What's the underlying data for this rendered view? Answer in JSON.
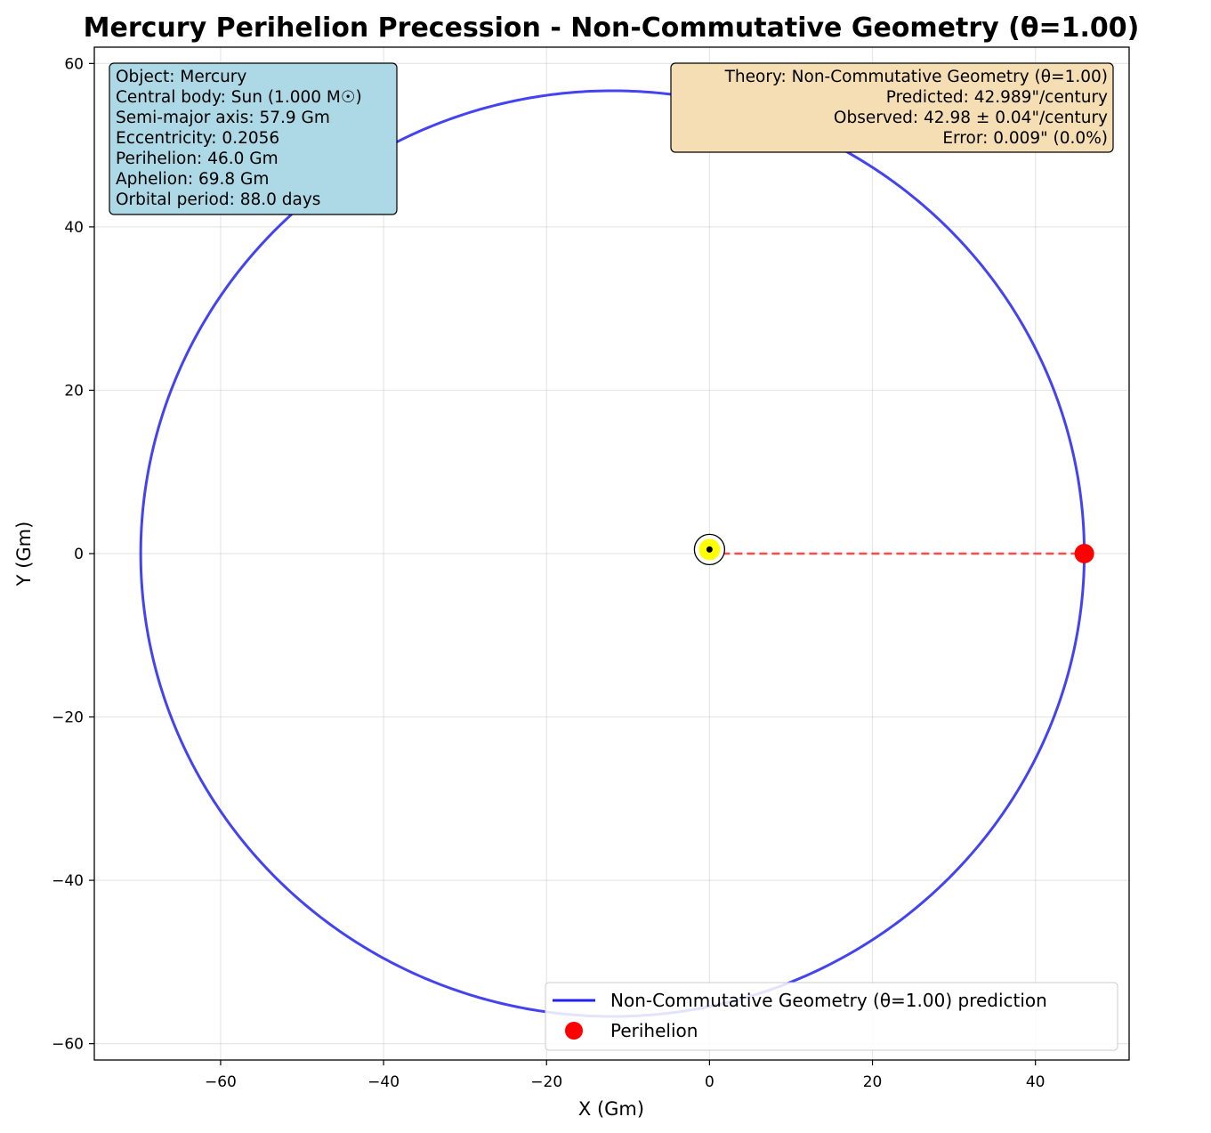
{
  "chart_data": {
    "type": "scatter",
    "title": "Mercury Perihelion Precession - Non-Commutative Geometry (θ=1.00)",
    "xlabel": "X (Gm)",
    "ylabel": "Y (Gm)",
    "xlim": [
      -75.5,
      51.5
    ],
    "ylim": [
      -62.0,
      62.0
    ],
    "x_ticks": [
      -60,
      -40,
      -20,
      0,
      20,
      40
    ],
    "y_ticks": [
      -60,
      -40,
      -20,
      0,
      20,
      40,
      60
    ],
    "x_tick_labels": [
      "−60",
      "−40",
      "−20",
      "0",
      "20",
      "40"
    ],
    "y_tick_labels": [
      "−60",
      "−40",
      "−20",
      "0",
      "20",
      "40",
      "60"
    ],
    "grid": true,
    "legend_position": "bottom-right",
    "orbit": {
      "semi_major_axis": 57.9,
      "eccentricity": 0.2056,
      "focus": [
        0,
        0
      ],
      "perihelion_angle_deg": 0,
      "color": "#2222ee"
    },
    "series": [
      {
        "name": "Non-Commutative Geometry (θ=1.00) prediction",
        "type": "line",
        "color": "#2222ee"
      },
      {
        "name": "Perihelion",
        "type": "marker",
        "color": "#ff0000",
        "x": [
          46.0
        ],
        "y": [
          0.0
        ]
      }
    ],
    "perihelion_line": {
      "from": [
        0,
        0
      ],
      "to": [
        46.0,
        0
      ],
      "color": "#ff2222",
      "style": "dashed"
    },
    "central_body": {
      "x": 0,
      "y": 0.5,
      "color": "#ffff00"
    },
    "info_box": {
      "background": "#add8e6",
      "lines": [
        "Object: Mercury",
        "Central body: Sun (1.000 M☉)",
        "Semi-major axis: 57.9 Gm",
        "Eccentricity: 0.2056",
        "Perihelion: 46.0 Gm",
        "Aphelion: 69.8 Gm",
        "Orbital period: 88.0 days"
      ]
    },
    "theory_box": {
      "background": "#f5deb3",
      "lines": [
        "Theory: Non-Commutative Geometry (θ=1.00)",
        "Predicted: 42.989\"/century",
        "Observed: 42.98 ± 0.04\"/century",
        "Error: 0.009\" (0.0%)"
      ]
    }
  }
}
